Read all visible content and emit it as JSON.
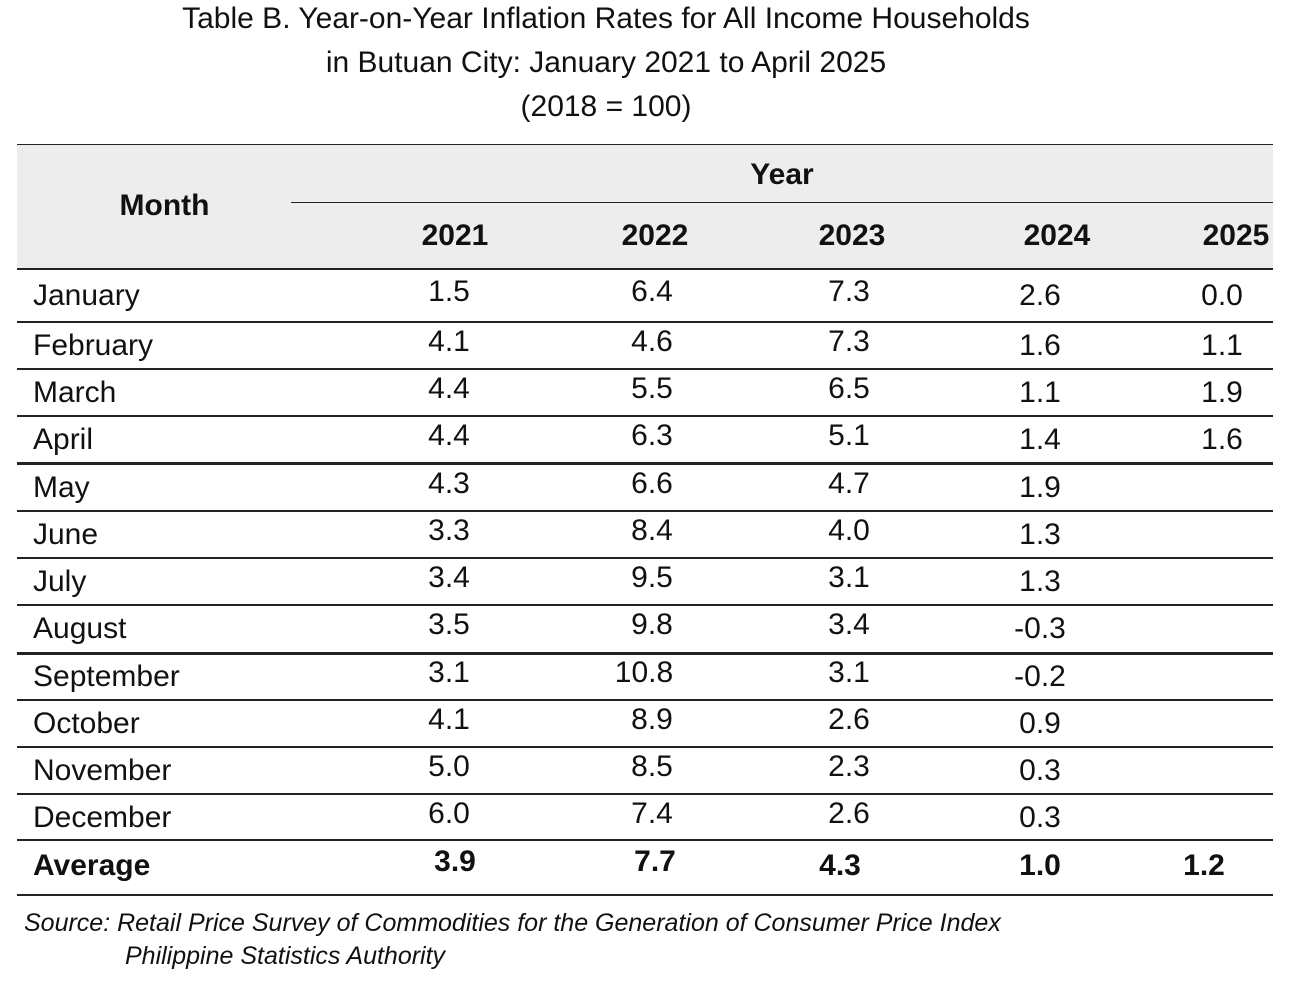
{
  "title": {
    "line1": "Table B. Year-on-Year Inflation Rates for All Income Households",
    "line2": "in Butuan City: January 2021 to April 2025",
    "line3": "(2018 = 100)"
  },
  "table": {
    "month_header": "Month",
    "year_header": "Year",
    "years": [
      "2021",
      "2022",
      "2023",
      "2024",
      "2025"
    ],
    "rows": [
      {
        "month": "January",
        "values": [
          "1.5",
          "6.4",
          "7.3",
          "2.6",
          "0.0"
        ]
      },
      {
        "month": "February",
        "values": [
          "4.1",
          "4.6",
          "7.3",
          "1.6",
          "1.1"
        ]
      },
      {
        "month": "March",
        "values": [
          "4.4",
          "5.5",
          "6.5",
          "1.1",
          "1.9"
        ]
      },
      {
        "month": "April",
        "values": [
          "4.4",
          "6.3",
          "5.1",
          "1.4",
          "1.6"
        ]
      },
      {
        "month": "May",
        "values": [
          "4.3",
          "6.6",
          "4.7",
          "1.9",
          ""
        ]
      },
      {
        "month": "June",
        "values": [
          "3.3",
          "8.4",
          "4.0",
          "1.3",
          ""
        ]
      },
      {
        "month": "July",
        "values": [
          "3.4",
          "9.5",
          "3.1",
          "1.3",
          ""
        ]
      },
      {
        "month": "August",
        "values": [
          "3.5",
          "9.8",
          "3.4",
          "-0.3",
          ""
        ]
      },
      {
        "month": "September",
        "values": [
          "3.1",
          "10.8",
          "3.1",
          "-0.2",
          ""
        ]
      },
      {
        "month": "October",
        "values": [
          "4.1",
          "8.9",
          "2.6",
          "0.9",
          ""
        ]
      },
      {
        "month": "November",
        "values": [
          "5.0",
          "8.5",
          "2.3",
          "0.3",
          ""
        ]
      },
      {
        "month": "December",
        "values": [
          "6.0",
          "7.4",
          "2.6",
          "0.3",
          ""
        ]
      }
    ],
    "average": {
      "label": "Average",
      "values": [
        "3.9",
        "7.7",
        "4.3",
        "1.0",
        "1.2"
      ]
    }
  },
  "source": {
    "line1": "Source: Retail Price Survey of Commodities for the Generation of Consumer Price Index",
    "line2": "Philippine Statistics Authority"
  },
  "colors": {
    "header_background": "#ededed",
    "rule": "#222222"
  }
}
